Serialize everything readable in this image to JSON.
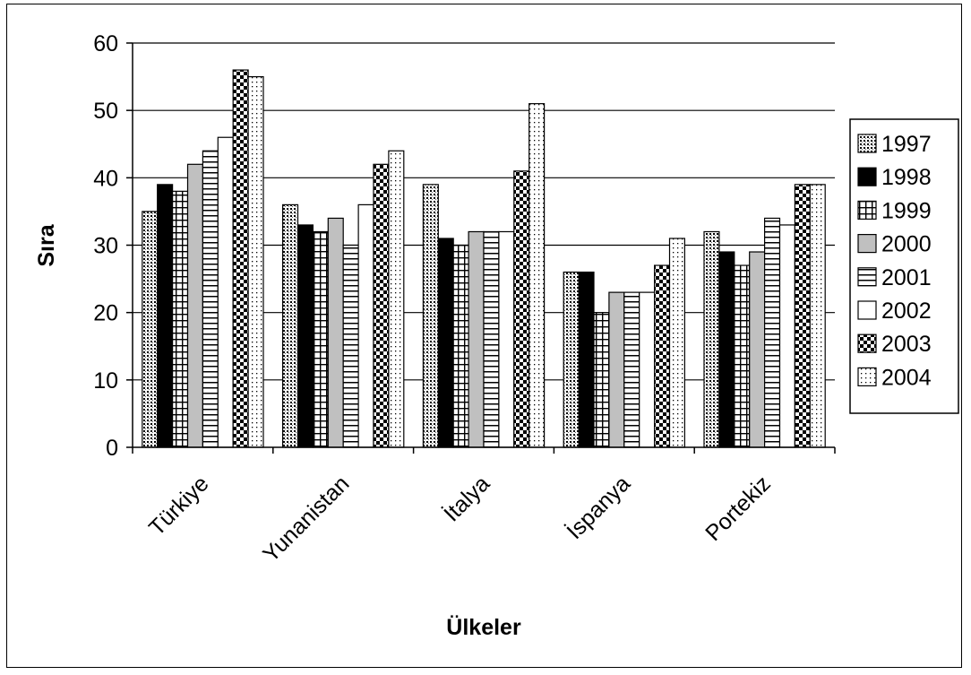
{
  "chart_data": {
    "type": "bar",
    "title": "",
    "xlabel": "Ülkeler",
    "ylabel": "Sıra",
    "ylim": [
      0,
      60
    ],
    "yticks": [
      "0",
      "10",
      "20",
      "30",
      "40",
      "50",
      "60"
    ],
    "grid": true,
    "legend_position": "right",
    "categories": [
      "Türkiye",
      "Yunanistan",
      "İtalya",
      "İspanya",
      "Portekiz"
    ],
    "series": [
      {
        "name": "1997",
        "pattern": "dots-dense",
        "values": [
          35,
          36,
          39,
          26,
          32
        ]
      },
      {
        "name": "1998",
        "pattern": "solid-black",
        "values": [
          39,
          33,
          31,
          26,
          29
        ]
      },
      {
        "name": "1999",
        "pattern": "grid-lines",
        "values": [
          38,
          32,
          30,
          20,
          27
        ]
      },
      {
        "name": "2000",
        "pattern": "solid-gray",
        "values": [
          42,
          34,
          32,
          23,
          29
        ]
      },
      {
        "name": "2001",
        "pattern": "horizontal-lines",
        "values": [
          44,
          30,
          32,
          23,
          34
        ]
      },
      {
        "name": "2002",
        "pattern": "white",
        "values": [
          46,
          36,
          32,
          23,
          33
        ]
      },
      {
        "name": "2003",
        "pattern": "checker",
        "values": [
          56,
          42,
          41,
          27,
          39
        ]
      },
      {
        "name": "2004",
        "pattern": "dots-sparse",
        "values": [
          55,
          44,
          51,
          31,
          39
        ]
      }
    ]
  }
}
